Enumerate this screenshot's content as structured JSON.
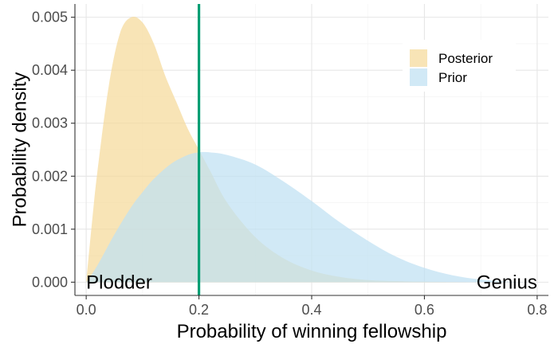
{
  "chart_data": {
    "type": "area",
    "title": "",
    "xlabel": "Probability of winning fellowship",
    "ylabel": "Probability density",
    "xlim": [
      -0.02,
      0.82
    ],
    "ylim": [
      -0.00025,
      0.00525
    ],
    "xticks": [
      0.0,
      0.2,
      0.4,
      0.6,
      0.8
    ],
    "xtick_labels": [
      "0.0",
      "0.2",
      "0.4",
      "0.6",
      "0.8"
    ],
    "yticks": [
      0.0,
      0.001,
      0.002,
      0.003,
      0.004,
      0.005
    ],
    "ytick_labels": [
      "0.000",
      "0.001",
      "0.002",
      "0.003",
      "0.004",
      "0.005"
    ],
    "grid": true,
    "legend_position": "top-right",
    "series": [
      {
        "name": "Posterior",
        "color": "#F5D99A",
        "x": [
          0.0,
          0.01,
          0.02,
          0.04,
          0.06,
          0.08,
          0.1,
          0.12,
          0.14,
          0.16,
          0.18,
          0.2,
          0.22,
          0.25,
          0.3,
          0.35,
          0.4,
          0.45,
          0.5,
          0.55,
          0.6,
          0.7,
          0.8
        ],
        "y": [
          0.0,
          0.0011,
          0.0021,
          0.0037,
          0.0047,
          0.005,
          0.0049,
          0.0045,
          0.0039,
          0.0034,
          0.0029,
          0.0025,
          0.0021,
          0.0015,
          0.00085,
          0.00045,
          0.00022,
          0.0001,
          4e-05,
          2e-05,
          1e-05,
          0.0,
          0.0
        ]
      },
      {
        "name": "Prior",
        "color": "#BFE0F3",
        "x": [
          0.0,
          0.02,
          0.05,
          0.08,
          0.1,
          0.12,
          0.15,
          0.18,
          0.2,
          0.22,
          0.25,
          0.3,
          0.35,
          0.4,
          0.45,
          0.5,
          0.55,
          0.6,
          0.65,
          0.7,
          0.75,
          0.8
        ],
        "y": [
          0.0,
          0.00032,
          0.0009,
          0.00142,
          0.0017,
          0.00195,
          0.00223,
          0.0024,
          0.00245,
          0.00245,
          0.0024,
          0.00222,
          0.0019,
          0.00153,
          0.00113,
          0.00078,
          0.00048,
          0.00027,
          0.00013,
          5e-05,
          1e-05,
          0.0
        ]
      }
    ],
    "reference_line": {
      "x": 0.2,
      "color": "#009E73"
    },
    "annotations": [
      {
        "text": "Plodder",
        "x": 0.0,
        "y": 0.0,
        "anchor": "start"
      },
      {
        "text": "Genius",
        "x": 0.8,
        "y": 0.0,
        "anchor": "end"
      }
    ]
  }
}
